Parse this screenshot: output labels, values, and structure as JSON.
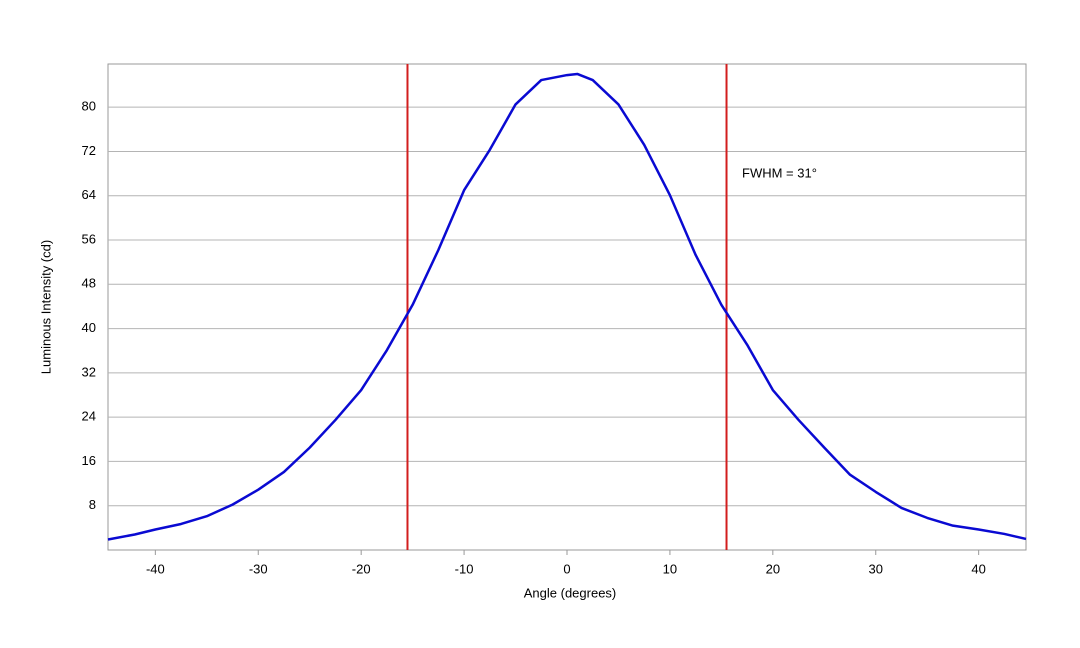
{
  "chart_data": {
    "type": "line",
    "x_label": "Angle (degrees)",
    "y_label": "Luminous Intensity (cd)",
    "annotation": "FWHM = 31°",
    "x": [
      -44.6,
      -42,
      -40,
      -37.5,
      -35,
      -32.5,
      -30,
      -27.5,
      -25,
      -22.5,
      -20,
      -17.5,
      -15,
      -12.5,
      -10,
      -7.5,
      -5,
      -2.5,
      0,
      1,
      2.5,
      5,
      7.5,
      10,
      12.5,
      15,
      17.5,
      20,
      22.5,
      25,
      27.5,
      30,
      32.5,
      35,
      37.5,
      40,
      42.5,
      44.6
    ],
    "series": [
      {
        "name": "Intensity",
        "color": "#0a0ad2",
        "values": [
          1.9,
          2.8,
          3.7,
          4.7,
          6.1,
          8.2,
          10.9,
          14.1,
          18.5,
          23.5,
          28.9,
          36.1,
          44.3,
          54.2,
          65.0,
          72.3,
          80.5,
          84.9,
          85.8,
          86.0,
          84.9,
          80.5,
          73.2,
          64.1,
          53.3,
          44.3,
          37.1,
          28.9,
          23.5,
          18.5,
          13.6,
          10.5,
          7.6,
          5.8,
          4.4,
          3.7,
          2.9,
          2.0
        ]
      }
    ],
    "vlines": [
      -15.5,
      15.5
    ],
    "vline_color": "#d21e1e",
    "xlim": [
      -44.6,
      44.6
    ],
    "ylim": [
      0,
      87.8
    ],
    "xticks": [
      -40,
      -30,
      -20,
      -10,
      0,
      10,
      20,
      30,
      40
    ],
    "yticks": [
      8,
      16,
      24,
      32,
      40,
      48,
      56,
      64,
      72,
      80
    ],
    "grid": true
  }
}
